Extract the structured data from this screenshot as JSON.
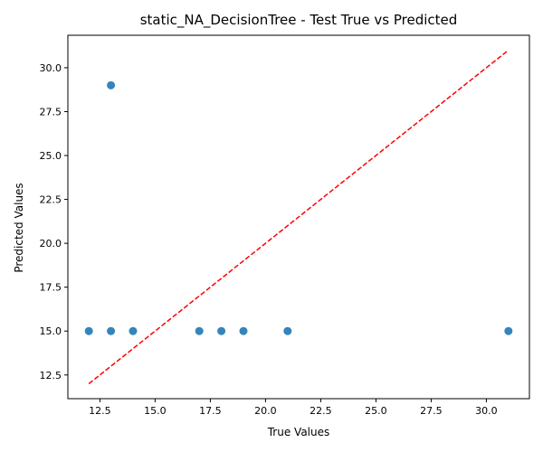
{
  "chart_data": {
    "type": "scatter",
    "title": "static_NA_DecisionTree - Test True vs Predicted",
    "xlabel": "True Values",
    "ylabel": "Predicted Values",
    "xlim": [
      11.05,
      31.95
    ],
    "ylim": [
      11.15,
      31.85
    ],
    "xticks": [
      "12.5",
      "15.0",
      "17.5",
      "20.0",
      "22.5",
      "25.0",
      "27.5",
      "30.0"
    ],
    "yticks": [
      "12.5",
      "15.0",
      "17.5",
      "20.0",
      "22.5",
      "25.0",
      "27.5",
      "30.0"
    ],
    "grid": false,
    "series": [
      {
        "color": "#1f77b4",
        "points": [
          {
            "x": 12,
            "y": 15
          },
          {
            "x": 13,
            "y": 15
          },
          {
            "x": 13,
            "y": 29
          },
          {
            "x": 14,
            "y": 15
          },
          {
            "x": 17,
            "y": 15
          },
          {
            "x": 18,
            "y": 15
          },
          {
            "x": 19,
            "y": 15
          },
          {
            "x": 21,
            "y": 15
          },
          {
            "x": 31,
            "y": 15
          }
        ]
      }
    ],
    "reference_line": {
      "from": [
        12,
        12
      ],
      "to": [
        31,
        31
      ],
      "color": "#ff0000",
      "style": "dashed"
    }
  }
}
